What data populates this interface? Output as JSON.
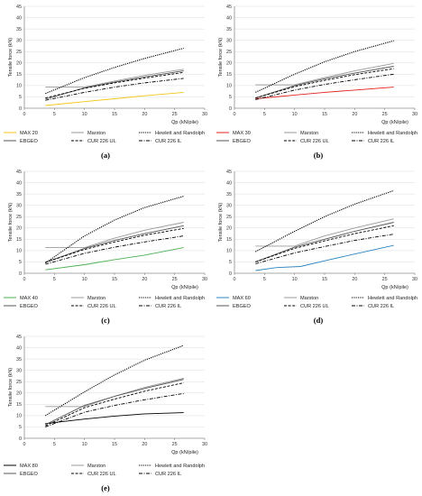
{
  "chart_data": [
    {
      "type": "line",
      "caption": "(a)",
      "xlabel": "Qp (kN/pile)",
      "ylabel": "Tensile force (kN)",
      "xlim": [
        0,
        30
      ],
      "ylim": [
        0,
        45
      ],
      "xticks": [
        "0",
        "5",
        "10",
        "15",
        "20",
        "25",
        "30"
      ],
      "yticks": [
        "0",
        "5",
        "10",
        "15",
        "20",
        "25",
        "30",
        "35",
        "40",
        "45"
      ],
      "grid": true,
      "series": [
        {
          "name": "MAX 20",
          "color": "#f5c518",
          "style": "solid",
          "x": [
            3.5,
            10,
            15,
            20,
            26.5
          ],
          "y": [
            1.2,
            2.9,
            4.2,
            5.5,
            7.0
          ]
        },
        {
          "name": "Marston",
          "color": "#9a9a9a",
          "style": "solid",
          "x": [
            3.5,
            10,
            15,
            20,
            26.5
          ],
          "y": [
            9.3,
            9.3,
            12.0,
            14.5,
            17.2
          ]
        },
        {
          "name": "Hewlett and Randolph",
          "color": "#000000",
          "style": "dotted",
          "x": [
            3.5,
            10,
            15,
            20,
            26.5
          ],
          "y": [
            6.5,
            13.5,
            18.0,
            22.0,
            26.5
          ]
        },
        {
          "name": "EBGEO",
          "color": "#555555",
          "style": "solid",
          "x": [
            3.5,
            10,
            15,
            20,
            26.5
          ],
          "y": [
            4.0,
            9.0,
            11.5,
            13.8,
            16.5
          ]
        },
        {
          "name": "CUR 226 UL",
          "color": "#000000",
          "style": "dashed",
          "x": [
            3.5,
            10,
            15,
            20,
            26.5
          ],
          "y": [
            4.5,
            8.8,
            11.2,
            13.3,
            15.8
          ]
        },
        {
          "name": "CUR 226 IL",
          "color": "#000000",
          "style": "dashdot",
          "x": [
            3.5,
            10,
            15,
            20,
            26.5
          ],
          "y": [
            3.5,
            7.0,
            9.3,
            11.2,
            13.2
          ]
        }
      ]
    },
    {
      "type": "line",
      "caption": "(b)",
      "xlabel": "Qp (kN/pile)",
      "ylabel": "Tensile force (kN)",
      "xlim": [
        0,
        30
      ],
      "ylim": [
        0,
        45
      ],
      "xticks": [
        "0",
        "5",
        "10",
        "15",
        "20",
        "25",
        "30"
      ],
      "yticks": [
        "0",
        "5",
        "10",
        "15",
        "20",
        "25",
        "30",
        "35",
        "40",
        "45"
      ],
      "grid": true,
      "series": [
        {
          "name": "MAX 30",
          "color": "#e02020",
          "style": "solid",
          "x": [
            3.5,
            10,
            15,
            20,
            26.5
          ],
          "y": [
            4.2,
            5.8,
            7.0,
            8.0,
            9.3
          ]
        },
        {
          "name": "Marston",
          "color": "#9a9a9a",
          "style": "solid",
          "x": [
            3.5,
            10,
            15,
            20,
            26.5
          ],
          "y": [
            10.3,
            10.3,
            13.5,
            16.5,
            19.8
          ]
        },
        {
          "name": "Hewlett and Randolph",
          "color": "#000000",
          "style": "dotted",
          "x": [
            3.5,
            10,
            15,
            20,
            26.5
          ],
          "y": [
            7.0,
            15.0,
            20.5,
            25.0,
            29.8
          ]
        },
        {
          "name": "EBGEO",
          "color": "#555555",
          "style": "solid",
          "x": [
            3.5,
            10,
            15,
            20,
            26.5
          ],
          "y": [
            4.5,
            10.0,
            13.0,
            15.5,
            18.5
          ]
        },
        {
          "name": "CUR 226 UL",
          "color": "#000000",
          "style": "dashed",
          "x": [
            3.5,
            10,
            15,
            20,
            26.5
          ],
          "y": [
            4.5,
            9.5,
            12.3,
            14.8,
            17.5
          ]
        },
        {
          "name": "CUR 226 IL",
          "color": "#000000",
          "style": "dashdot",
          "x": [
            3.5,
            10,
            15,
            20,
            26.5
          ],
          "y": [
            3.8,
            8.0,
            10.5,
            12.6,
            15.0
          ]
        }
      ]
    },
    {
      "type": "line",
      "caption": "(c)",
      "xlabel": "Qp (kN/pile)",
      "ylabel": "Tensile force (kN)",
      "xlim": [
        0,
        30
      ],
      "ylim": [
        0,
        45
      ],
      "xticks": [
        "0",
        "5",
        "10",
        "15",
        "20",
        "25",
        "30"
      ],
      "yticks": [
        "0",
        "5",
        "10",
        "15",
        "20",
        "25",
        "30",
        "35",
        "40",
        "45"
      ],
      "grid": true,
      "series": [
        {
          "name": "MAX 40",
          "color": "#4caf50",
          "style": "solid",
          "x": [
            3.5,
            10,
            15,
            20,
            26.5
          ],
          "y": [
            1.5,
            3.8,
            6.0,
            8.0,
            11.3
          ]
        },
        {
          "name": "Marston",
          "color": "#9a9a9a",
          "style": "solid",
          "x": [
            3.5,
            10,
            15,
            20,
            26.5
          ],
          "y": [
            11.3,
            11.3,
            15.5,
            19.0,
            22.5
          ]
        },
        {
          "name": "Hewlett and Randolph",
          "color": "#000000",
          "style": "dotted",
          "x": [
            3.5,
            10,
            15,
            20,
            26.5
          ],
          "y": [
            4.5,
            16.5,
            23.5,
            29.0,
            34.0
          ]
        },
        {
          "name": "EBGEO",
          "color": "#555555",
          "style": "solid",
          "x": [
            3.5,
            10,
            15,
            20,
            26.5
          ],
          "y": [
            4.8,
            11.0,
            14.5,
            17.5,
            21.0
          ]
        },
        {
          "name": "CUR 226 UL",
          "color": "#000000",
          "style": "dashed",
          "x": [
            3.5,
            10,
            15,
            20,
            26.5
          ],
          "y": [
            4.8,
            10.5,
            13.8,
            16.8,
            19.8
          ]
        },
        {
          "name": "CUR 226 IL",
          "color": "#000000",
          "style": "dashdot",
          "x": [
            3.5,
            10,
            15,
            20,
            26.5
          ],
          "y": [
            4.0,
            8.8,
            11.5,
            13.8,
            16.5
          ]
        }
      ]
    },
    {
      "type": "line",
      "caption": "(d)",
      "xlabel": "Qp (kN/pile)",
      "ylabel": "Tensile force (kN)",
      "xlim": [
        0,
        30
      ],
      "ylim": [
        0,
        45
      ],
      "xticks": [
        "0",
        "5",
        "10",
        "15",
        "20",
        "25",
        "30"
      ],
      "yticks": [
        "0",
        "5",
        "10",
        "15",
        "20",
        "25",
        "30",
        "35",
        "40",
        "45"
      ],
      "grid": true,
      "series": [
        {
          "name": "MAX 60",
          "color": "#2e86c1",
          "style": "solid",
          "x": [
            3.5,
            7,
            11,
            15,
            20,
            26.5
          ],
          "y": [
            1.2,
            2.5,
            3.0,
            5.5,
            8.5,
            12.3
          ]
        },
        {
          "name": "Marston",
          "color": "#9a9a9a",
          "style": "solid",
          "x": [
            3.5,
            10,
            15,
            20,
            26.5
          ],
          "y": [
            12.0,
            12.0,
            16.5,
            20.0,
            24.0
          ]
        },
        {
          "name": "Hewlett and Randolph",
          "color": "#000000",
          "style": "dotted",
          "x": [
            3.5,
            10,
            15,
            20,
            26.5
          ],
          "y": [
            9.5,
            18.5,
            25.0,
            30.5,
            36.5
          ]
        },
        {
          "name": "EBGEO",
          "color": "#555555",
          "style": "solid",
          "x": [
            3.5,
            10,
            15,
            20,
            26.5
          ],
          "y": [
            5.0,
            11.5,
            15.0,
            18.5,
            22.5
          ]
        },
        {
          "name": "CUR 226 UL",
          "color": "#000000",
          "style": "dashed",
          "x": [
            3.5,
            10,
            15,
            20,
            26.5
          ],
          "y": [
            5.0,
            11.0,
            14.3,
            17.5,
            21.0
          ]
        },
        {
          "name": "CUR 226 IL",
          "color": "#000000",
          "style": "dashdot",
          "x": [
            3.5,
            10,
            15,
            20,
            26.5
          ],
          "y": [
            4.2,
            9.0,
            11.8,
            14.5,
            17.3
          ]
        }
      ]
    },
    {
      "type": "line",
      "caption": "(e)",
      "xlabel": "Qp (kN/pile)",
      "ylabel": "Tensile force (kN)",
      "xlim": [
        0,
        30
      ],
      "ylim": [
        0,
        45
      ],
      "xticks": [
        "0",
        "5",
        "10",
        "15",
        "20",
        "25",
        "30"
      ],
      "yticks": [
        "0",
        "5",
        "10",
        "15",
        "20",
        "25",
        "30",
        "35",
        "40",
        "45"
      ],
      "grid": true,
      "series": [
        {
          "name": "MAX 80",
          "color": "#000000",
          "style": "solid",
          "x": [
            3.5,
            10,
            15,
            20,
            26.5
          ],
          "y": [
            6.5,
            8.5,
            9.8,
            10.8,
            11.3
          ]
        },
        {
          "name": "Marston",
          "color": "#9a9a9a",
          "style": "solid",
          "x": [
            3.5,
            10,
            15,
            20,
            26.5
          ],
          "y": [
            14.0,
            14.0,
            18.5,
            22.5,
            26.5
          ]
        },
        {
          "name": "Hewlett and Randolph",
          "color": "#000000",
          "style": "dotted",
          "x": [
            3.5,
            10,
            15,
            20,
            26.5
          ],
          "y": [
            10.0,
            20.5,
            28.0,
            34.5,
            41.0
          ]
        },
        {
          "name": "EBGEO",
          "color": "#555555",
          "style": "solid",
          "x": [
            3.5,
            10,
            15,
            20,
            26.5
          ],
          "y": [
            6.0,
            14.5,
            18.5,
            22.0,
            26.0
          ]
        },
        {
          "name": "CUR 226 UL",
          "color": "#000000",
          "style": "dashed",
          "x": [
            3.5,
            10,
            15,
            20,
            26.5
          ],
          "y": [
            5.5,
            13.5,
            17.3,
            20.8,
            24.5
          ]
        },
        {
          "name": "CUR 226 IL",
          "color": "#000000",
          "style": "dashdot",
          "x": [
            3.5,
            10,
            15,
            20,
            26.5
          ],
          "y": [
            5.0,
            11.5,
            14.5,
            17.0,
            19.8
          ]
        }
      ]
    }
  ]
}
